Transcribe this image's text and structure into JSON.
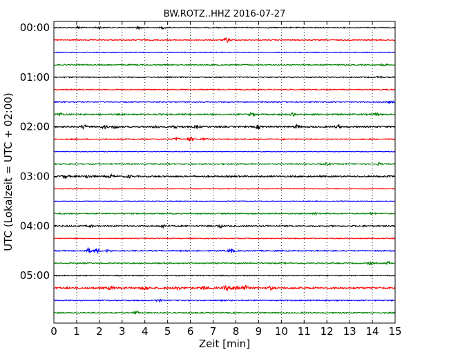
{
  "chart_data": {
    "type": "line",
    "title": "BW.ROTZ..HHZ 2016-07-27",
    "xlabel": "Zeit  [min]",
    "ylabel": "UTC (Lokalzeit = UTC + 02:00)",
    "xlim": [
      0,
      15
    ],
    "x_ticks": [
      0,
      1,
      2,
      3,
      4,
      5,
      6,
      7,
      8,
      9,
      10,
      11,
      12,
      13,
      14,
      15
    ],
    "x_tick_labels": [
      "0",
      "1",
      "2",
      "3",
      "4",
      "5",
      "6",
      "7",
      "8",
      "9",
      "10",
      "11",
      "12",
      "13",
      "14",
      "15"
    ],
    "y_tick_labels": [
      "00:00",
      "01:00",
      "02:00",
      "03:00",
      "04:00",
      "05:00"
    ],
    "vertical_grid": "dotted",
    "color_cycle": [
      "#000000",
      "#ff0000",
      "#0000ff",
      "#008000"
    ],
    "series": [
      {
        "color": "#000000",
        "noise": 0.7,
        "bursts": [
          {
            "t": 1.1,
            "amp": 1.5
          },
          {
            "t": 2.0,
            "amp": 1.4
          },
          {
            "t": 3.7,
            "amp": 1.2
          },
          {
            "t": 4.8,
            "amp": 1.1
          }
        ]
      },
      {
        "color": "#ff0000",
        "noise": 0.7,
        "bursts": [
          {
            "t": 7.6,
            "amp": 3.0
          }
        ]
      },
      {
        "color": "#0000ff",
        "noise": 0.6,
        "bursts": []
      },
      {
        "color": "#008000",
        "noise": 0.8,
        "bursts": [
          {
            "t": 14.5,
            "amp": 1.3
          }
        ]
      },
      {
        "color": "#000000",
        "noise": 0.7,
        "bursts": [
          {
            "t": 14.3,
            "amp": 1.2
          }
        ]
      },
      {
        "color": "#ff0000",
        "noise": 0.7,
        "bursts": []
      },
      {
        "color": "#0000ff",
        "noise": 0.7,
        "bursts": [
          {
            "t": 14.8,
            "amp": 1.4
          }
        ]
      },
      {
        "color": "#008000",
        "noise": 1.0,
        "bursts": [
          {
            "t": 0.3,
            "amp": 1.8
          },
          {
            "t": 8.7,
            "amp": 2.0
          },
          {
            "t": 10.5,
            "amp": 1.5
          },
          {
            "t": 14.2,
            "amp": 1.6
          }
        ]
      },
      {
        "color": "#000000",
        "noise": 1.0,
        "bursts": [
          {
            "t": 1.3,
            "amp": 2.5
          },
          {
            "t": 2.2,
            "amp": 2.2
          },
          {
            "t": 2.7,
            "amp": 2.0
          },
          {
            "t": 4.5,
            "amp": 2.2
          },
          {
            "t": 5.3,
            "amp": 2.0
          },
          {
            "t": 6.3,
            "amp": 2.0
          },
          {
            "t": 9.0,
            "amp": 2.5
          },
          {
            "t": 10.7,
            "amp": 2.3
          },
          {
            "t": 12.5,
            "amp": 2.0
          }
        ]
      },
      {
        "color": "#ff0000",
        "noise": 0.8,
        "bursts": [
          {
            "t": 5.4,
            "amp": 2.0
          },
          {
            "t": 6.0,
            "amp": 2.8
          },
          {
            "t": 6.6,
            "amp": 2.0
          }
        ]
      },
      {
        "color": "#0000ff",
        "noise": 0.5,
        "bursts": []
      },
      {
        "color": "#008000",
        "noise": 0.8,
        "bursts": [
          {
            "t": 12.0,
            "amp": 1.3
          },
          {
            "t": 14.3,
            "amp": 1.4
          }
        ]
      },
      {
        "color": "#000000",
        "noise": 1.1,
        "bursts": [
          {
            "t": 0.5,
            "amp": 2.5
          },
          {
            "t": 1.5,
            "amp": 2.0
          },
          {
            "t": 2.5,
            "amp": 1.8
          },
          {
            "t": 3.3,
            "amp": 1.6
          }
        ]
      },
      {
        "color": "#ff0000",
        "noise": 0.5,
        "bursts": []
      },
      {
        "color": "#0000ff",
        "noise": 0.5,
        "bursts": []
      },
      {
        "color": "#008000",
        "noise": 0.8,
        "bursts": [
          {
            "t": 11.5,
            "amp": 1.2
          },
          {
            "t": 14.0,
            "amp": 1.2
          }
        ]
      },
      {
        "color": "#000000",
        "noise": 1.0,
        "bursts": [
          {
            "t": 1.6,
            "amp": 1.5
          },
          {
            "t": 4.8,
            "amp": 1.8
          },
          {
            "t": 7.3,
            "amp": 2.0
          }
        ]
      },
      {
        "color": "#ff0000",
        "noise": 0.6,
        "bursts": []
      },
      {
        "color": "#0000ff",
        "noise": 0.8,
        "bursts": [
          {
            "t": 1.5,
            "amp": 3.5
          },
          {
            "t": 1.9,
            "amp": 3.5
          },
          {
            "t": 2.4,
            "amp": 1.8
          },
          {
            "t": 7.8,
            "amp": 2.8
          }
        ]
      },
      {
        "color": "#008000",
        "noise": 0.8,
        "bursts": [
          {
            "t": 13.9,
            "amp": 2.0
          },
          {
            "t": 14.7,
            "amp": 2.0
          }
        ]
      },
      {
        "color": "#000000",
        "noise": 0.7,
        "bursts": []
      },
      {
        "color": "#ff0000",
        "noise": 1.3,
        "bursts": [
          {
            "t": 2.5,
            "amp": 2.0
          },
          {
            "t": 4.0,
            "amp": 2.5
          },
          {
            "t": 5.4,
            "amp": 2.5
          },
          {
            "t": 6.6,
            "amp": 2.5
          },
          {
            "t": 7.6,
            "amp": 3.0
          },
          {
            "t": 8.0,
            "amp": 5.5
          },
          {
            "t": 8.4,
            "amp": 3.5
          },
          {
            "t": 9.5,
            "amp": 2.0
          }
        ]
      },
      {
        "color": "#0000ff",
        "noise": 0.8,
        "bursts": [
          {
            "t": 4.6,
            "amp": 1.5
          }
        ]
      },
      {
        "color": "#008000",
        "noise": 0.8,
        "bursts": [
          {
            "t": 3.6,
            "amp": 2.0
          }
        ]
      }
    ]
  }
}
